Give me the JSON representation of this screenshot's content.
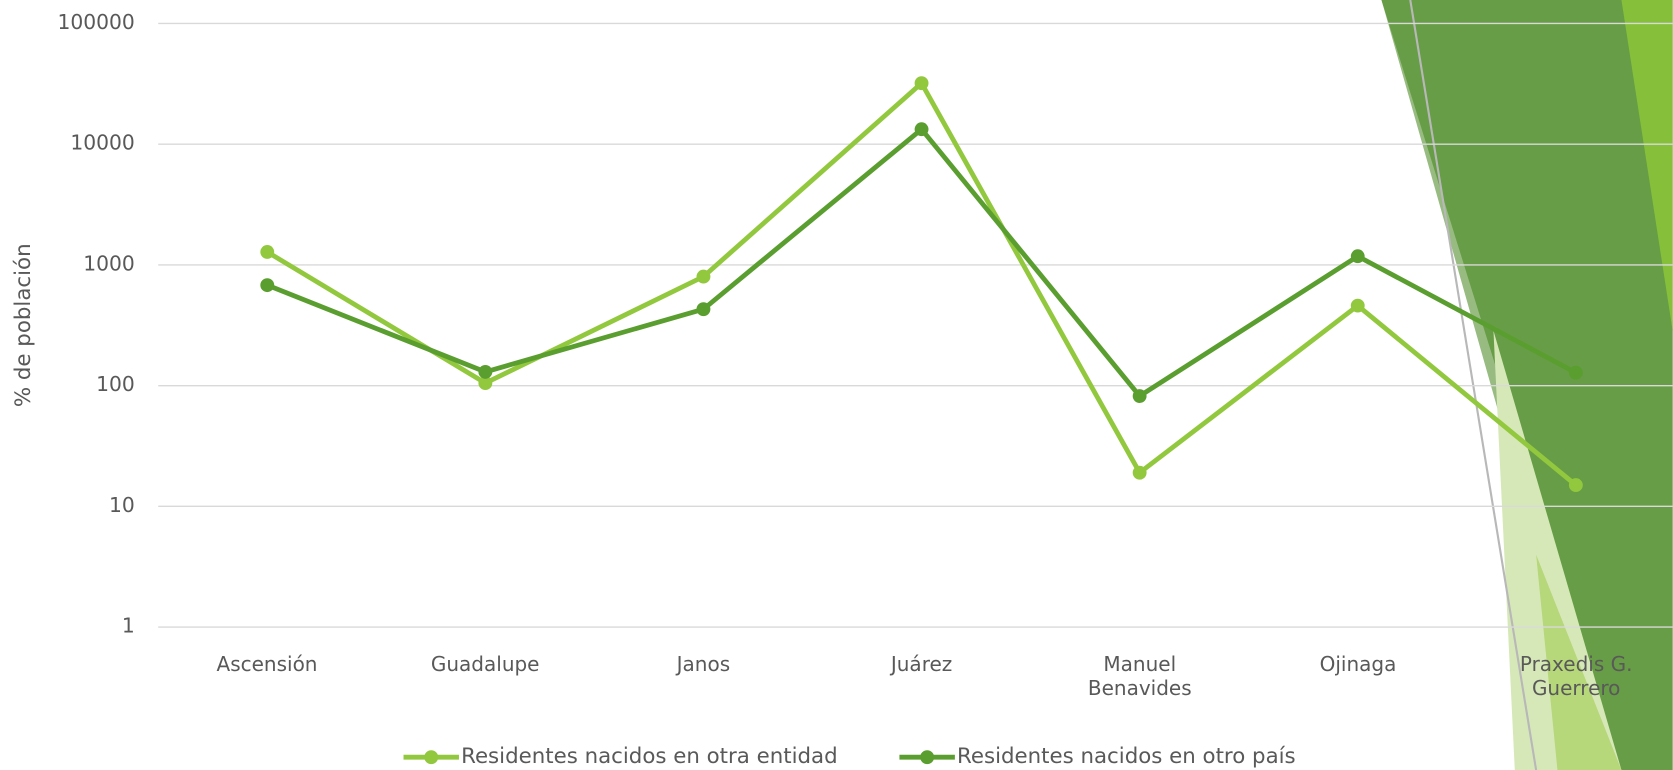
{
  "chart_data": {
    "type": "line",
    "y_label": "% de población",
    "categories": [
      "Ascensión",
      "Guadalupe",
      "Janos",
      "Juárez",
      "Manuel Benavides",
      "Ojinaga",
      "Praxedis G. Guerrero"
    ],
    "series": [
      {
        "name": "Residentes nacidos en otra entidad",
        "color": "#92c83e",
        "values": [
          1280,
          105,
          800,
          32000,
          19,
          460,
          15
        ]
      },
      {
        "name": "Residentes nacidos en otro país",
        "color": "#5a9e2f",
        "values": [
          680,
          130,
          430,
          13300,
          82,
          1180,
          128
        ]
      }
    ],
    "ylim": [
      1,
      100000
    ],
    "yticks": [
      1,
      10,
      100,
      1000,
      10000,
      100000
    ],
    "log_scale": true,
    "grid": true,
    "legend": "bottom"
  }
}
